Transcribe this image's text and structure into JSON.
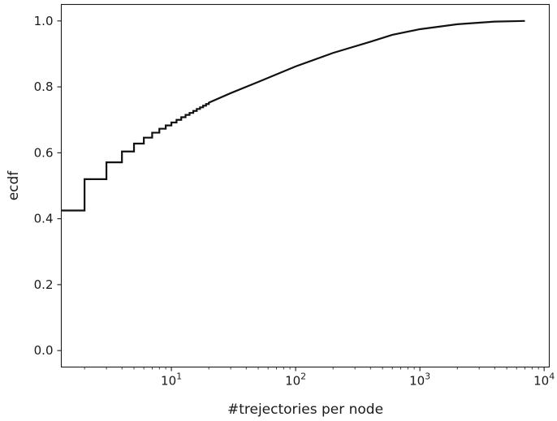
{
  "chart_data": {
    "type": "line",
    "xlabel": "#trejectories per node",
    "ylabel": "ecdf",
    "xscale": "log",
    "xlim": [
      1.3,
      11000
    ],
    "ylim": [
      -0.05,
      1.05
    ],
    "grid": false,
    "x_ticks": [
      {
        "value": 10,
        "base": "10",
        "exp": "1"
      },
      {
        "value": 100,
        "base": "10",
        "exp": "2"
      },
      {
        "value": 1000,
        "base": "10",
        "exp": "3"
      },
      {
        "value": 10000,
        "base": "10",
        "exp": "4"
      }
    ],
    "y_ticks": [
      {
        "value": 0.0,
        "label": "0.0"
      },
      {
        "value": 0.2,
        "label": "0.2"
      },
      {
        "value": 0.4,
        "label": "0.4"
      },
      {
        "value": 0.6,
        "label": "0.6"
      },
      {
        "value": 0.8,
        "label": "0.8"
      },
      {
        "value": 1.0,
        "label": "1.0"
      }
    ],
    "series": [
      {
        "color": "#111111",
        "steps": [
          {
            "x": 1.3,
            "y": 0.425
          },
          {
            "x": 2,
            "y": 0.52
          },
          {
            "x": 3,
            "y": 0.571
          },
          {
            "x": 4,
            "y": 0.604
          },
          {
            "x": 5,
            "y": 0.628
          },
          {
            "x": 6,
            "y": 0.646
          },
          {
            "x": 7,
            "y": 0.661
          },
          {
            "x": 8,
            "y": 0.673
          },
          {
            "x": 9,
            "y": 0.683
          },
          {
            "x": 10,
            "y": 0.692
          },
          {
            "x": 11,
            "y": 0.7
          },
          {
            "x": 12,
            "y": 0.708
          },
          {
            "x": 13,
            "y": 0.715
          },
          {
            "x": 14,
            "y": 0.721
          },
          {
            "x": 15,
            "y": 0.727
          },
          {
            "x": 16,
            "y": 0.733
          },
          {
            "x": 17,
            "y": 0.738
          },
          {
            "x": 18,
            "y": 0.743
          },
          {
            "x": 19,
            "y": 0.748
          },
          {
            "x": 20,
            "y": 0.752
          }
        ],
        "points": [
          {
            "x": 30,
            "y": 0.781
          },
          {
            "x": 50,
            "y": 0.815
          },
          {
            "x": 100,
            "y": 0.862
          },
          {
            "x": 200,
            "y": 0.903
          },
          {
            "x": 400,
            "y": 0.937
          },
          {
            "x": 600,
            "y": 0.958
          },
          {
            "x": 1000,
            "y": 0.975
          },
          {
            "x": 2000,
            "y": 0.99
          },
          {
            "x": 4000,
            "y": 0.998
          },
          {
            "x": 7000,
            "y": 1.0
          }
        ]
      }
    ]
  }
}
